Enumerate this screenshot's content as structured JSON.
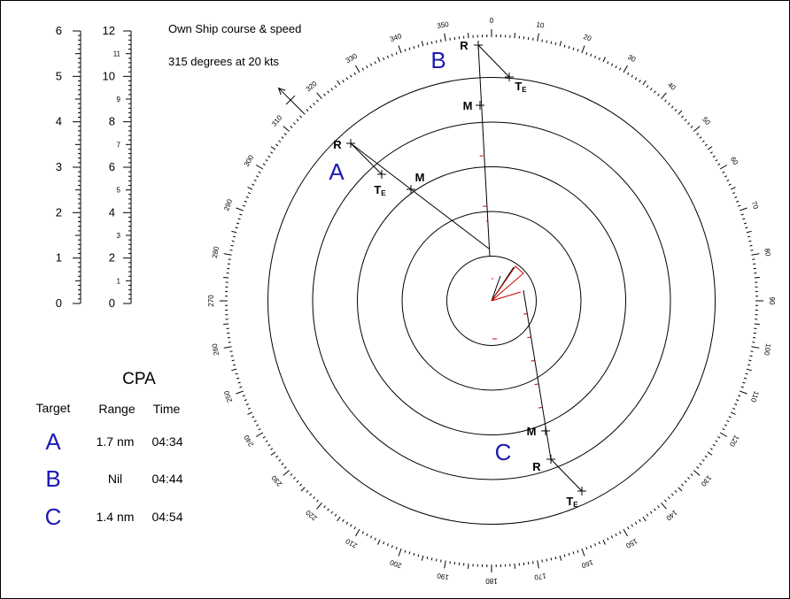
{
  "own_ship": {
    "title": "Own Ship course & speed",
    "value": "315 degrees at 20 kts",
    "course_deg": 315
  },
  "scales": {
    "left_major": [
      "0",
      "1",
      "2",
      "3",
      "4",
      "5",
      "6"
    ],
    "right_major": [
      "0",
      "2",
      "4",
      "6",
      "8",
      "10",
      "12"
    ],
    "right_minor": [
      "1",
      "3",
      "5",
      "7",
      "9",
      "11"
    ]
  },
  "cpa": {
    "title": "CPA",
    "headers": {
      "target": "Target",
      "range": "Range",
      "time": "Time"
    },
    "rows": [
      {
        "target": "A",
        "range": "1.7 nm",
        "time": "04:34"
      },
      {
        "target": "B",
        "range": "Nil",
        "time": "04:44"
      },
      {
        "target": "C",
        "range": "1.4 nm",
        "time": "04:54"
      }
    ]
  },
  "plot": {
    "rings": 5,
    "bearing_labels": [
      "0",
      "10",
      "20",
      "30",
      "40",
      "50",
      "60",
      "70",
      "80",
      "90",
      "100",
      "110",
      "120",
      "130",
      "140",
      "150",
      "160",
      "170",
      "180",
      "190",
      "200",
      "210",
      "220",
      "230",
      "240",
      "250",
      "260",
      "270",
      "280",
      "290",
      "300",
      "310",
      "320",
      "330",
      "340",
      "350"
    ],
    "targets": [
      {
        "id": "A",
        "label": "A",
        "r_label": "R",
        "m_label": "M",
        "te_main": "T",
        "te_sub": "E"
      },
      {
        "id": "B",
        "label": "B",
        "r_label": "R",
        "m_label": "M",
        "te_main": "T",
        "te_sub": "E"
      },
      {
        "id": "C",
        "label": "C",
        "r_label": "R",
        "m_label": "M",
        "te_main": "T",
        "te_sub": "E"
      }
    ]
  },
  "colors": {
    "target": "#1a1ab4",
    "vector": "#cc0000",
    "line": "#000000"
  }
}
